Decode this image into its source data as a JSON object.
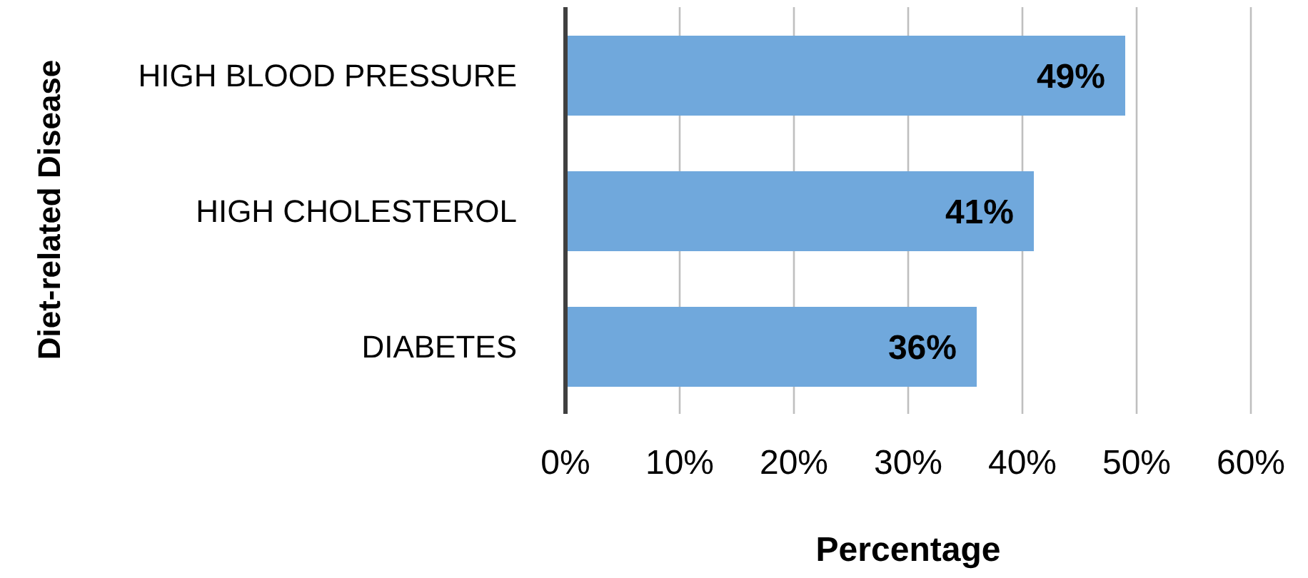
{
  "chart_data": {
    "type": "bar",
    "orientation": "horizontal",
    "xlabel": "Percentage",
    "ylabel": "Diet-related Disease",
    "categories": [
      "HIGH BLOOD PRESSURE",
      "HIGH CHOLESTEROL",
      "DIABETES"
    ],
    "values": [
      49,
      41,
      36
    ],
    "value_labels": [
      "49%",
      "41%",
      "36%"
    ],
    "color": "#70a8dc",
    "xlim": [
      0,
      60
    ],
    "xticks": [
      {
        "value": 0,
        "label": "0%"
      },
      {
        "value": 10,
        "label": "10%"
      },
      {
        "value": 20,
        "label": "20%"
      },
      {
        "value": 30,
        "label": "30%"
      },
      {
        "value": 40,
        "label": "40%"
      },
      {
        "value": 50,
        "label": "50%"
      },
      {
        "value": 60,
        "label": "60%"
      }
    ],
    "grid": "x",
    "legend": false
  }
}
